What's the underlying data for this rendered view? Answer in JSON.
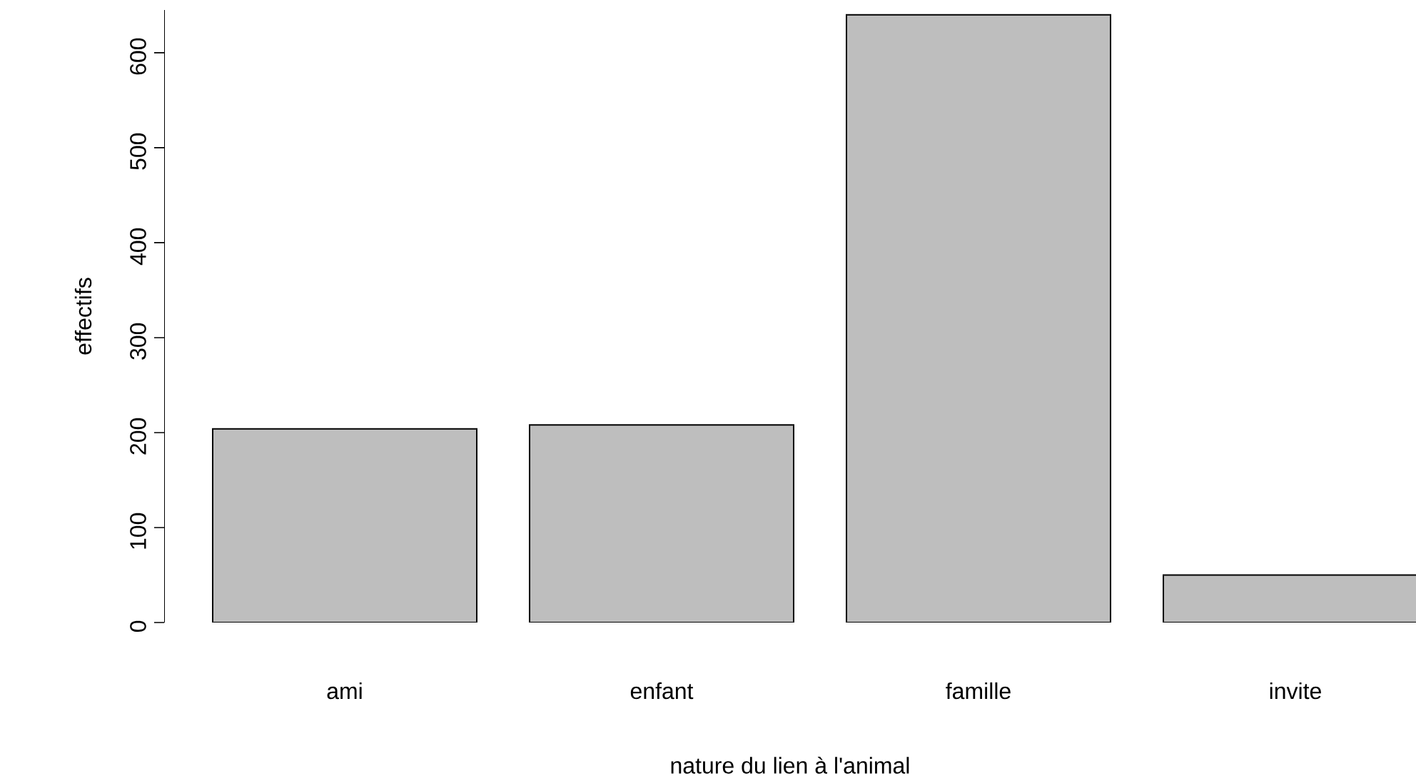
{
  "chart_data": {
    "type": "bar",
    "categories": [
      "ami",
      "enfant",
      "famille",
      "invite"
    ],
    "values": [
      204,
      208,
      640,
      50
    ],
    "color": "#bebebe",
    "xlabel": "nature du lien à l'animal",
    "ylabel": "effectifs",
    "ylim": [
      0,
      645
    ],
    "yticks": [
      0,
      100,
      200,
      300,
      400,
      500,
      600
    ]
  }
}
